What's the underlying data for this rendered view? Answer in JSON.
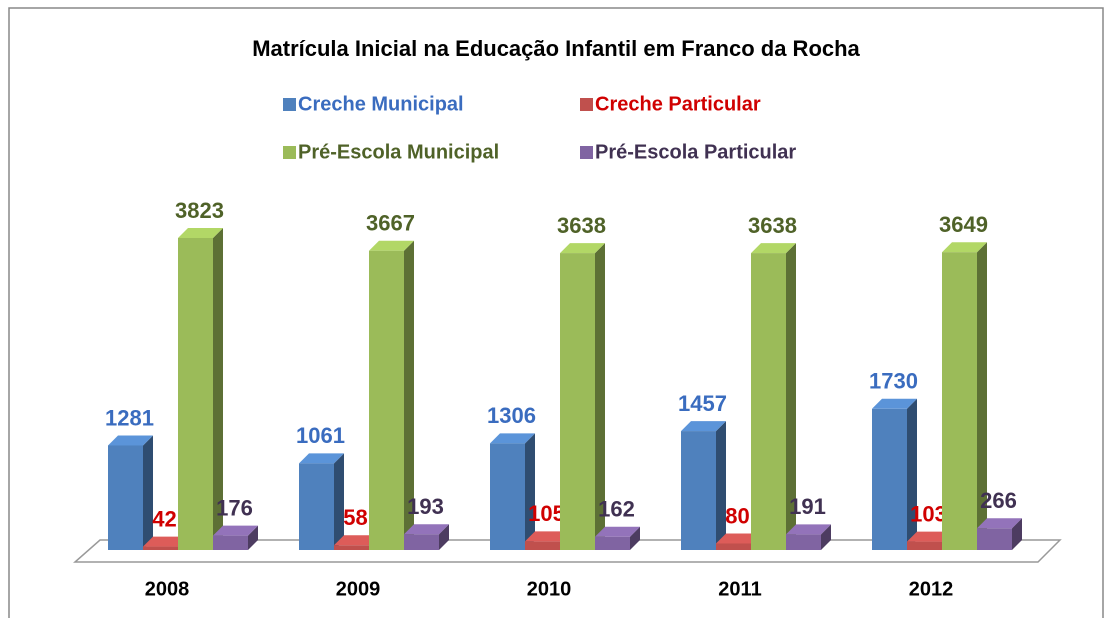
{
  "chart_data": {
    "type": "bar3d",
    "title": "Matrícula Inicial na Educação Infantil em Franco da Rocha",
    "categories": [
      "2008",
      "2009",
      "2010",
      "2011",
      "2012"
    ],
    "series": [
      {
        "name": "Creche Municipal",
        "color": "#4f81bd",
        "values": [
          1281,
          1061,
          1306,
          1457,
          1730
        ]
      },
      {
        "name": "Creche Particular",
        "color": "#c0504d",
        "values": [
          42,
          58,
          105,
          80,
          103
        ]
      },
      {
        "name": "Pré-Escola Municipal",
        "color": "#9bbb59",
        "values": [
          3823,
          3667,
          3638,
          3638,
          3649
        ]
      },
      {
        "name": "Pré-Escola Particular",
        "color": "#8064a2",
        "values": [
          176,
          193,
          162,
          191,
          266
        ]
      }
    ]
  }
}
